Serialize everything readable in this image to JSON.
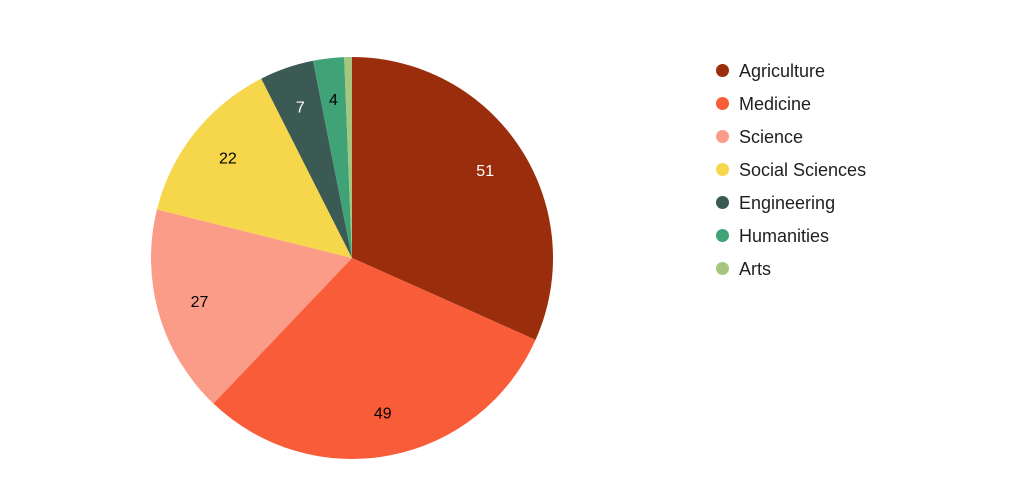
{
  "chart_data": {
    "type": "pie",
    "title": "",
    "categories": [
      "Agriculture",
      "Medicine",
      "Science",
      "Social Sciences",
      "Engineering",
      "Humanities",
      "Arts"
    ],
    "values": [
      51,
      49,
      27,
      22,
      7,
      4,
      1
    ],
    "colors": [
      "#9A2D0B",
      "#F95C39",
      "#FA9C87",
      "#F6D74C",
      "#3A5A53",
      "#40A377",
      "#A6C67F"
    ],
    "data_labels": [
      "51",
      "49",
      "27",
      "22",
      "7",
      "4",
      ""
    ],
    "data_label_colors": [
      "#FFFFFF",
      "#000000",
      "#000000",
      "#000000",
      "#FFFFFF",
      "#000000",
      "#000000"
    ],
    "start_angle_deg": 0,
    "direction": "clockwise",
    "legend_position": "right",
    "background_color": "#FFFFFF"
  }
}
